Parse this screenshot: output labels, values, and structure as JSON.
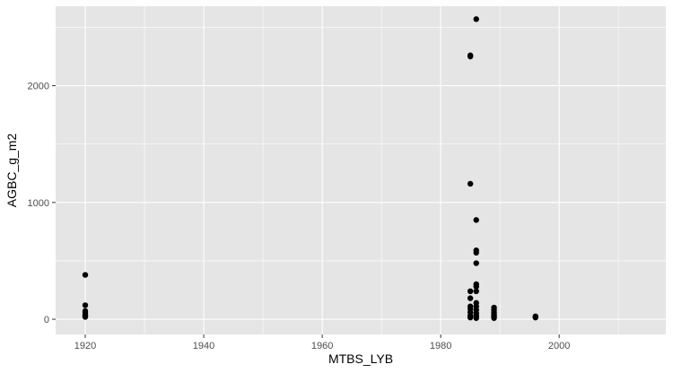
{
  "chart_data": {
    "type": "scatter",
    "title": "",
    "xlabel": "MTBS_LYB",
    "ylabel": "AGBC_g_m2",
    "xlim": [
      1915,
      2018
    ],
    "ylim": [
      -130,
      2680
    ],
    "x_ticks": [
      1920,
      1940,
      1960,
      1980,
      2000
    ],
    "x_tick_labels": [
      "1920",
      "1940",
      "1960",
      "1980",
      "2000"
    ],
    "y_ticks": [
      0,
      1000,
      2000
    ],
    "y_tick_labels": [
      "0",
      "1000",
      "2000"
    ],
    "grid": true,
    "legend": "none",
    "colors": {
      "panel": "#e5e5e5",
      "grid": "#ffffff",
      "point": "#000000"
    },
    "points": [
      {
        "x": 1920,
        "y": 380
      },
      {
        "x": 1920,
        "y": 120
      },
      {
        "x": 1920,
        "y": 70
      },
      {
        "x": 1920,
        "y": 55
      },
      {
        "x": 1920,
        "y": 40
      },
      {
        "x": 1920,
        "y": 30
      },
      {
        "x": 1920,
        "y": 20
      },
      {
        "x": 1985,
        "y": 2260
      },
      {
        "x": 1985,
        "y": 2250
      },
      {
        "x": 1985,
        "y": 1160
      },
      {
        "x": 1985,
        "y": 240
      },
      {
        "x": 1985,
        "y": 180
      },
      {
        "x": 1985,
        "y": 110
      },
      {
        "x": 1985,
        "y": 90
      },
      {
        "x": 1985,
        "y": 60
      },
      {
        "x": 1985,
        "y": 30
      },
      {
        "x": 1985,
        "y": 15
      },
      {
        "x": 1986,
        "y": 2570
      },
      {
        "x": 1986,
        "y": 850
      },
      {
        "x": 1986,
        "y": 590
      },
      {
        "x": 1986,
        "y": 570
      },
      {
        "x": 1986,
        "y": 480
      },
      {
        "x": 1986,
        "y": 300
      },
      {
        "x": 1986,
        "y": 280
      },
      {
        "x": 1986,
        "y": 240
      },
      {
        "x": 1986,
        "y": 140
      },
      {
        "x": 1986,
        "y": 110
      },
      {
        "x": 1986,
        "y": 80
      },
      {
        "x": 1986,
        "y": 50
      },
      {
        "x": 1986,
        "y": 30
      },
      {
        "x": 1986,
        "y": 10
      },
      {
        "x": 1989,
        "y": 100
      },
      {
        "x": 1989,
        "y": 80
      },
      {
        "x": 1989,
        "y": 60
      },
      {
        "x": 1989,
        "y": 45
      },
      {
        "x": 1989,
        "y": 30
      },
      {
        "x": 1989,
        "y": 20
      },
      {
        "x": 1989,
        "y": 10
      },
      {
        "x": 1996,
        "y": 25
      },
      {
        "x": 1996,
        "y": 15
      }
    ]
  }
}
